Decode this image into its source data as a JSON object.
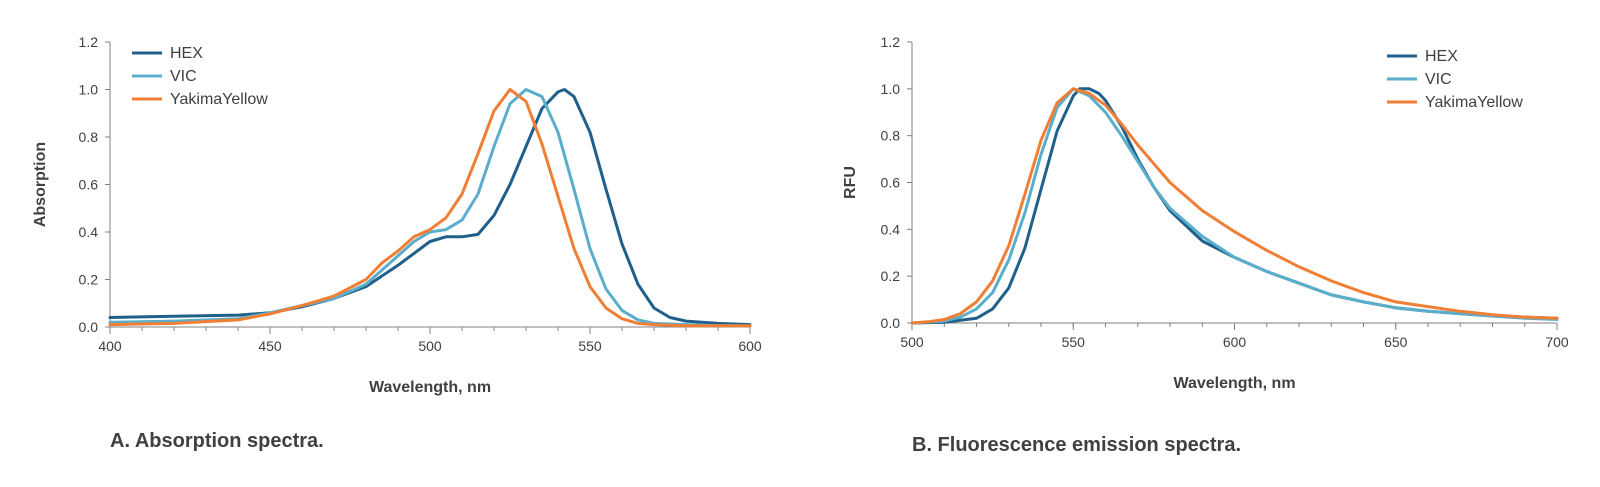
{
  "colors": {
    "HEX": "#1f5f8b",
    "VIC": "#5aaecc",
    "YakimaYellow": "#f07f35",
    "axis": "#808080"
  },
  "captions": {
    "a": "A. Absorption spectra.",
    "b": "B. Fluorescence emission spectra."
  },
  "chart_data": [
    {
      "type": "line",
      "xlabel": "Wavelength, nm",
      "ylabel": "Absorption",
      "xlim": [
        400,
        600
      ],
      "ylim": [
        0,
        1.2
      ],
      "x_ticks": [
        "400",
        "450",
        "500",
        "550",
        "600"
      ],
      "y_ticks": [
        "0.0",
        "0.2",
        "0.4",
        "0.6",
        "0.8",
        "1.0",
        "1.2"
      ],
      "legend_position": "top-left",
      "series": [
        {
          "name": "HEX",
          "x": [
            400,
            420,
            440,
            450,
            460,
            470,
            480,
            490,
            500,
            505,
            510,
            515,
            520,
            525,
            530,
            535,
            540,
            542,
            545,
            550,
            555,
            560,
            565,
            570,
            575,
            580,
            590,
            600
          ],
          "y": [
            0.04,
            0.045,
            0.05,
            0.06,
            0.085,
            0.12,
            0.17,
            0.26,
            0.36,
            0.38,
            0.38,
            0.39,
            0.47,
            0.6,
            0.76,
            0.92,
            0.99,
            1.0,
            0.97,
            0.82,
            0.58,
            0.35,
            0.18,
            0.08,
            0.04,
            0.025,
            0.015,
            0.01
          ]
        },
        {
          "name": "VIC",
          "x": [
            400,
            420,
            440,
            450,
            460,
            470,
            480,
            490,
            495,
            500,
            505,
            510,
            515,
            520,
            525,
            530,
            535,
            540,
            545,
            550,
            555,
            560,
            565,
            570,
            580,
            590,
            600
          ],
          "y": [
            0.02,
            0.025,
            0.035,
            0.06,
            0.09,
            0.12,
            0.18,
            0.3,
            0.36,
            0.4,
            0.41,
            0.45,
            0.56,
            0.76,
            0.94,
            1.0,
            0.97,
            0.82,
            0.58,
            0.33,
            0.16,
            0.07,
            0.03,
            0.015,
            0.01,
            0.005,
            0.005
          ]
        },
        {
          "name": "YakimaYellow",
          "x": [
            400,
            420,
            440,
            450,
            460,
            470,
            480,
            485,
            490,
            495,
            500,
            505,
            510,
            515,
            520,
            525,
            530,
            535,
            540,
            545,
            550,
            555,
            560,
            565,
            570,
            580,
            590,
            600
          ],
          "y": [
            0.01,
            0.015,
            0.03,
            0.055,
            0.09,
            0.13,
            0.2,
            0.27,
            0.32,
            0.38,
            0.41,
            0.46,
            0.56,
            0.73,
            0.91,
            1.0,
            0.95,
            0.77,
            0.55,
            0.33,
            0.17,
            0.08,
            0.035,
            0.015,
            0.01,
            0.005,
            0.005,
            0.005
          ]
        }
      ]
    },
    {
      "type": "line",
      "xlabel": "Wavelength, nm",
      "ylabel": "RFU",
      "xlim": [
        500,
        700
      ],
      "ylim": [
        0,
        1.2
      ],
      "x_ticks": [
        "500",
        "550",
        "600",
        "650",
        "700"
      ],
      "y_ticks": [
        "0.0",
        "0.2",
        "0.4",
        "0.6",
        "0.8",
        "1.0",
        "1.2"
      ],
      "legend_position": "top-right",
      "series": [
        {
          "name": "HEX",
          "x": [
            500,
            510,
            520,
            525,
            530,
            535,
            540,
            545,
            550,
            552,
            555,
            558,
            560,
            565,
            570,
            575,
            580,
            590,
            600,
            610,
            620,
            630,
            640,
            650,
            660,
            670,
            680,
            690,
            700
          ],
          "y": [
            0,
            0.003,
            0.02,
            0.06,
            0.15,
            0.32,
            0.57,
            0.82,
            0.97,
            1.0,
            1.0,
            0.98,
            0.95,
            0.84,
            0.7,
            0.58,
            0.48,
            0.35,
            0.28,
            0.22,
            0.17,
            0.12,
            0.09,
            0.065,
            0.05,
            0.04,
            0.03,
            0.025,
            0.02
          ]
        },
        {
          "name": "VIC",
          "x": [
            500,
            510,
            515,
            520,
            525,
            530,
            535,
            540,
            545,
            550,
            555,
            560,
            565,
            570,
            575,
            580,
            590,
            600,
            610,
            620,
            630,
            640,
            650,
            660,
            670,
            680,
            690,
            700
          ],
          "y": [
            0,
            0.008,
            0.025,
            0.06,
            0.13,
            0.27,
            0.47,
            0.72,
            0.92,
            1.0,
            0.97,
            0.9,
            0.8,
            0.69,
            0.58,
            0.49,
            0.37,
            0.28,
            0.22,
            0.17,
            0.12,
            0.09,
            0.065,
            0.05,
            0.04,
            0.03,
            0.02,
            0.015
          ]
        },
        {
          "name": "YakimaYellow",
          "x": [
            500,
            505,
            510,
            515,
            520,
            525,
            530,
            535,
            540,
            545,
            550,
            555,
            560,
            565,
            570,
            575,
            580,
            590,
            600,
            610,
            620,
            630,
            640,
            650,
            660,
            670,
            680,
            690,
            700
          ],
          "y": [
            0,
            0.005,
            0.015,
            0.04,
            0.09,
            0.18,
            0.33,
            0.55,
            0.78,
            0.94,
            1.0,
            0.98,
            0.93,
            0.85,
            0.76,
            0.68,
            0.6,
            0.48,
            0.39,
            0.31,
            0.24,
            0.18,
            0.13,
            0.09,
            0.07,
            0.05,
            0.035,
            0.025,
            0.02
          ]
        }
      ]
    }
  ]
}
